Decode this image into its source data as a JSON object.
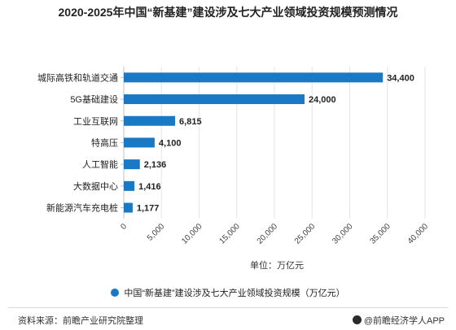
{
  "colors": {
    "bar": "#1a79c4",
    "grid": "#e6e6e6",
    "axis": "#bfbfbf"
  },
  "chart_data": {
    "type": "bar",
    "orientation": "horizontal",
    "title": "2020-2025年中国“新基建”建设涉及七大产业领域投资规模预测情况",
    "categories": [
      "城际高铁和轨道交通",
      "5G基础建设",
      "工业互联网",
      "特高压",
      "人工智能",
      "大数据中心",
      "新能源汽车充电桩"
    ],
    "values": [
      34400,
      24000,
      6815,
      4100,
      2136,
      1416,
      1177
    ],
    "value_labels": [
      "34,400",
      "24,000",
      "6,815",
      "4,100",
      "2,136",
      "1,416",
      "1,177"
    ],
    "xlim": [
      0,
      40000
    ],
    "xticks": [
      0,
      5000,
      10000,
      15000,
      20000,
      25000,
      30000,
      35000,
      40000
    ],
    "xtick_labels": [
      "0",
      "5,000",
      "10,000",
      "15,000",
      "20,000",
      "25,000",
      "30,000",
      "35,000",
      "40,000"
    ],
    "xlabel": "单位：万亿元",
    "grid": true,
    "legend": {
      "position": "bottom",
      "entries": [
        "中国“新基建”建设涉及七大产业领域投资规模（万亿元）"
      ]
    }
  },
  "footer": {
    "source": "资料来源：前瞻产业研究院整理",
    "brand": "@前瞻经济学人APP"
  }
}
